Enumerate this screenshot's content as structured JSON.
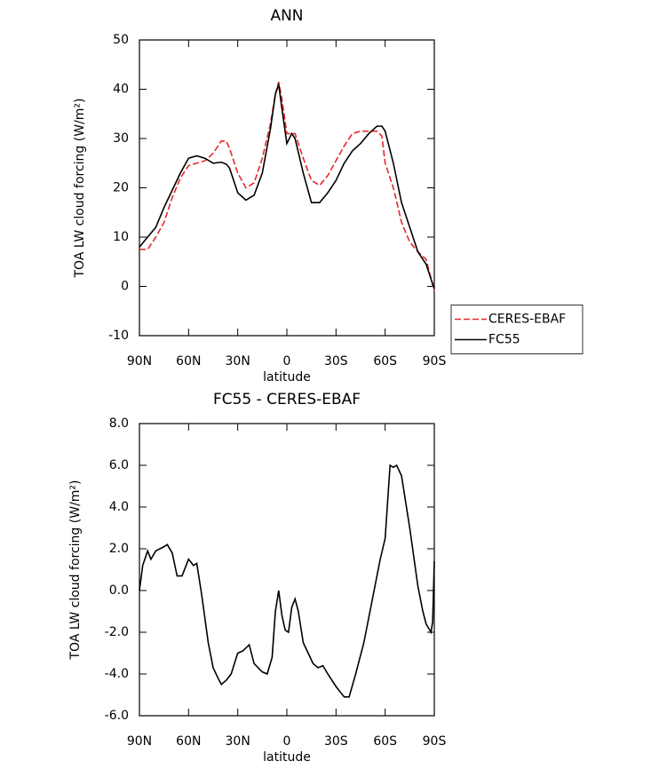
{
  "chart_data": [
    {
      "type": "line",
      "title": "ANN",
      "xlabel": "latitude",
      "ylabel": "TOA LW cloud forcing (W/m²)",
      "xlim": [
        90,
        -90
      ],
      "xticks": [
        {
          "value": 90,
          "label": "90N"
        },
        {
          "value": 60,
          "label": "60N"
        },
        {
          "value": 30,
          "label": "30N"
        },
        0,
        {
          "value": -30,
          "label": "30S"
        },
        {
          "value": -60,
          "label": "60S"
        },
        {
          "value": -90,
          "label": "90S"
        }
      ],
      "ylim": [
        -10,
        50
      ],
      "yticks": [
        -10,
        0,
        10,
        20,
        30,
        40,
        50
      ],
      "legend": "right",
      "x": [
        90,
        85,
        80,
        75,
        70,
        65,
        60,
        55,
        50,
        45,
        40,
        37,
        35,
        30,
        25,
        20,
        15,
        10,
        7,
        5,
        3,
        0,
        -3,
        -5,
        -10,
        -15,
        -20,
        -25,
        -30,
        -35,
        -40,
        -45,
        -50,
        -55,
        -58,
        -60,
        -65,
        -70,
        -75,
        -80,
        -85,
        -90
      ],
      "series": [
        {
          "name": "CERES-EBAF",
          "color": "#e8262a",
          "style": "dashed",
          "values": [
            7.5,
            7.5,
            10,
            13,
            18,
            22,
            24.5,
            25,
            25.5,
            27,
            29.5,
            29.5,
            28,
            23,
            20,
            21,
            26,
            33,
            39,
            41.5,
            38,
            31,
            31,
            31,
            26,
            21.5,
            20.5,
            22.5,
            25.5,
            28.5,
            31,
            31.5,
            31.5,
            31.5,
            30.5,
            25,
            20,
            13,
            9,
            7,
            5.5,
            -1
          ]
        },
        {
          "name": "FC55",
          "color": "#000000",
          "style": "solid",
          "values": [
            8,
            10,
            12,
            16,
            19.5,
            23,
            26,
            26.5,
            26,
            25,
            25.2,
            24.8,
            24,
            19,
            17.5,
            18.5,
            23,
            32,
            39,
            41,
            36,
            29,
            31,
            30,
            23,
            17,
            17,
            19,
            21.5,
            25,
            27.5,
            29,
            31,
            32.5,
            32.5,
            31.5,
            25,
            17,
            12,
            7,
            4.5,
            -0.5
          ]
        }
      ]
    },
    {
      "type": "line",
      "title": "FC55 - CERES-EBAF",
      "xlabel": "latitude",
      "ylabel": "TOA LW cloud forcing (W/m²)",
      "xlim": [
        90,
        -90
      ],
      "xticks": [
        {
          "value": 90,
          "label": "90N"
        },
        {
          "value": 60,
          "label": "60N"
        },
        {
          "value": 30,
          "label": "30N"
        },
        0,
        {
          "value": -30,
          "label": "30S"
        },
        {
          "value": -60,
          "label": "60S"
        },
        {
          "value": -90,
          "label": "90S"
        }
      ],
      "ylim": [
        -6,
        8
      ],
      "yticks": [
        {
          "value": -6,
          "label": "-6.0"
        },
        {
          "value": -4,
          "label": "-4.0"
        },
        {
          "value": -2,
          "label": "-2.0"
        },
        {
          "value": 0,
          "label": "0.0"
        },
        {
          "value": 2,
          "label": "2.0"
        },
        {
          "value": 4,
          "label": "4.0"
        },
        {
          "value": 6,
          "label": "6.0"
        },
        {
          "value": 8,
          "label": "8.0"
        }
      ],
      "color": "#000000",
      "x": [
        90,
        88,
        85,
        83,
        80,
        75,
        73,
        70,
        67,
        64,
        60,
        57,
        55,
        52,
        48,
        45,
        42,
        40,
        37,
        34,
        30,
        27,
        23,
        20,
        15,
        12,
        9,
        7,
        5,
        3,
        1,
        -1,
        -3,
        -5,
        -7,
        -10,
        -13,
        -16,
        -19,
        -22,
        -25,
        -30,
        -35,
        -38,
        -42,
        -47,
        -52,
        -57,
        -60,
        -63,
        -65,
        -67,
        -70,
        -75,
        -80,
        -83,
        -85,
        -88,
        -89,
        -90
      ],
      "values": [
        0,
        1.2,
        1.9,
        1.5,
        1.9,
        2.1,
        2.2,
        1.8,
        0.7,
        0.7,
        1.5,
        1.2,
        1.3,
        -0.2,
        -2.5,
        -3.7,
        -4.2,
        -4.5,
        -4.3,
        -4.0,
        -3.0,
        -2.9,
        -2.6,
        -3.5,
        -3.9,
        -4.0,
        -3.2,
        -1.0,
        0,
        -1.2,
        -1.9,
        -2.0,
        -0.8,
        -0.4,
        -1.0,
        -2.5,
        -3.0,
        -3.5,
        -3.7,
        -3.6,
        -4.0,
        -4.6,
        -5.1,
        -5.1,
        -4.0,
        -2.5,
        -0.5,
        1.5,
        2.5,
        6.0,
        5.9,
        6.0,
        5.5,
        3.0,
        0.2,
        -1.0,
        -1.6,
        -2.0,
        -1.5,
        1.4
      ]
    }
  ]
}
